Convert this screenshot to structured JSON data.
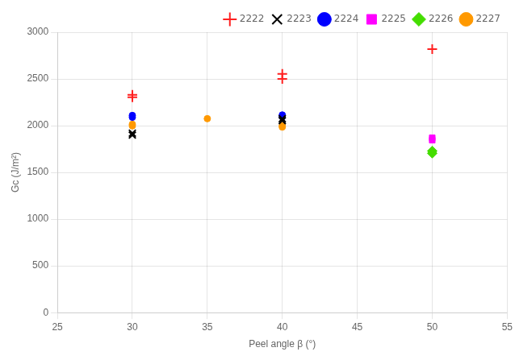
{
  "chart_data": {
    "type": "scatter",
    "xlabel": "Peel angle β (°)",
    "ylabel": "Gc (J/m²)",
    "xlim": [
      25,
      55
    ],
    "ylim": [
      0,
      3000
    ],
    "xticks": [
      25,
      30,
      35,
      40,
      45,
      50,
      55
    ],
    "yticks": [
      0,
      500,
      1000,
      1500,
      2000,
      2500,
      3000
    ],
    "grid": true,
    "legend": "upper right",
    "series": [
      {
        "name": "2222",
        "color": "#ff2020",
        "marker": "plus",
        "x": [
          30,
          30,
          40,
          40,
          50
        ],
        "values": [
          2305,
          2330,
          2555,
          2500,
          2820
        ]
      },
      {
        "name": "2223",
        "color": "#000000",
        "marker": "x",
        "x": [
          30,
          30,
          40,
          40
        ],
        "values": [
          1920,
          1900,
          2075,
          2055
        ]
      },
      {
        "name": "2224",
        "color": "#0000ff",
        "marker": "circle",
        "x": [
          30,
          30,
          40,
          40
        ],
        "values": [
          2090,
          2110,
          2115,
          2095
        ]
      },
      {
        "name": "2225",
        "color": "#ff00ff",
        "marker": "square",
        "x": [
          50,
          50
        ],
        "values": [
          1870,
          1845
        ]
      },
      {
        "name": "2226",
        "color": "#44dd00",
        "marker": "diamond",
        "x": [
          50,
          50
        ],
        "values": [
          1730,
          1705
        ]
      },
      {
        "name": "2227",
        "color": "#ff9900",
        "marker": "circle",
        "x": [
          30,
          30,
          35,
          40,
          40
        ],
        "values": [
          1998,
          2015,
          2075,
          2000,
          1985
        ]
      }
    ]
  }
}
